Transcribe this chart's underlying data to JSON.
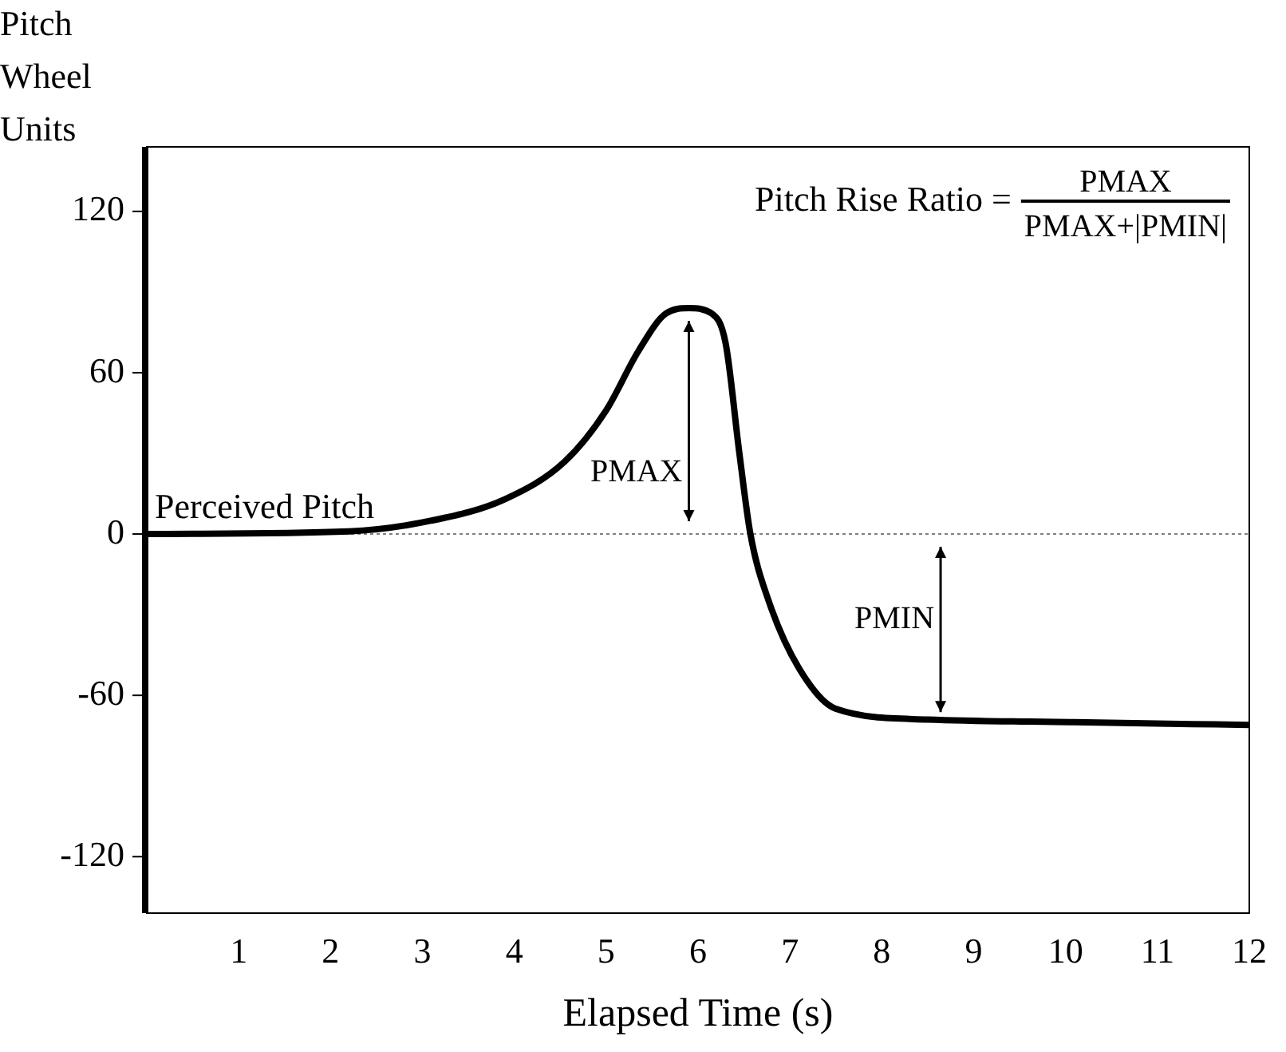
{
  "chart_data": {
    "type": "line",
    "xlabel": "Elapsed Time (s)",
    "ylabel": "Pitch Wheel Units",
    "xlim": [
      0,
      12
    ],
    "xticks": [
      1,
      2,
      3,
      4,
      5,
      6,
      7,
      8,
      9,
      10,
      11,
      12
    ],
    "ylim": [
      -141,
      144
    ],
    "yticks": [
      -120,
      -60,
      0,
      60,
      120
    ],
    "grid": false,
    "legend": false,
    "marker": "none",
    "line_style": "solid",
    "series": [
      {
        "name": "Perceived Pitch",
        "color": "#000000",
        "x": [
          0,
          2.2,
          3.1,
          3.9,
          4.55,
          5.0,
          5.35,
          5.65,
          5.9,
          6.15,
          6.3,
          6.45,
          6.57,
          6.77,
          7.1,
          7.5,
          8.5,
          10.1,
          12
        ],
        "values": [
          0,
          1,
          5,
          13,
          27,
          46,
          68,
          82,
          84,
          82,
          71,
          30,
          0,
          -25,
          -50,
          -65,
          -69,
          -70,
          -71
        ]
      }
    ],
    "ref_lines": [
      {
        "axis": "y",
        "value": 0,
        "color": "#808080",
        "line_style": "dotted"
      }
    ],
    "annotations": [
      "Pitch Rise Ratio =",
      "PMAX",
      "PMAX+|PMIN|",
      "PMAX",
      "PMIN"
    ]
  }
}
